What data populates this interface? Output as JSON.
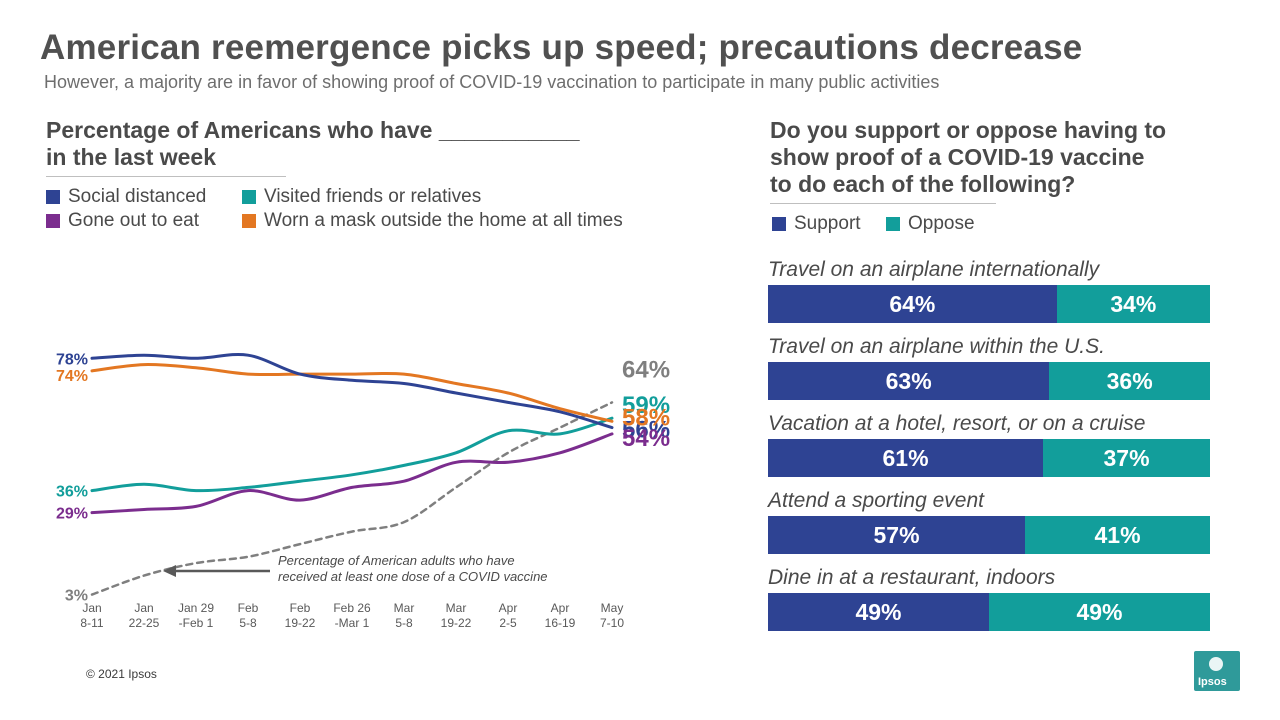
{
  "header": {
    "title": "American reemergence picks up speed; precautions decrease",
    "subtitle": "However, a majority are in favor of showing proof of COVID-19  vaccination to participate in many public  activities"
  },
  "left": {
    "heading_line1": "Percentage of Americans who have ___________",
    "heading_line2": "in the last week"
  },
  "right": {
    "heading_line1": "Do you support or oppose having to",
    "heading_line2": "show proof of a COVID-19 vaccine",
    "heading_line3": "to do each of the following?"
  },
  "colors": {
    "navy": "#2e4393",
    "teal": "#129e9b",
    "purple": "#7b2d8e",
    "orange": "#e37722",
    "gray_dashed": "#7f7f7f"
  },
  "chart_data": [
    {
      "type": "line",
      "title": "Percentage of Americans who have ___________ in the last week",
      "categories": [
        [
          "Jan",
          "8-11"
        ],
        [
          "Jan",
          "22-25"
        ],
        [
          "Jan 29",
          "-Feb 1"
        ],
        [
          "Feb",
          "5-8"
        ],
        [
          "Feb",
          "19-22"
        ],
        [
          "Feb 26",
          "-Mar 1"
        ],
        [
          "Mar",
          "5-8"
        ],
        [
          "Mar",
          "19-22"
        ],
        [
          "Apr",
          "2-5"
        ],
        [
          "Apr",
          "16-19"
        ],
        [
          "May",
          "7-10"
        ]
      ],
      "ylim": [
        0,
        100
      ],
      "series": [
        {
          "name": "Social distanced",
          "color": "#2e4393",
          "values": [
            78,
            79,
            78,
            79,
            73,
            71,
            70,
            67,
            64,
            61,
            56
          ],
          "start_label": "78%",
          "end_label": "56%"
        },
        {
          "name": "Visited friends or relatives",
          "color": "#129e9b",
          "values": [
            36,
            38,
            36,
            37,
            39,
            41,
            44,
            48,
            55,
            54,
            59
          ],
          "start_label": "36%",
          "end_label": "59%"
        },
        {
          "name": "Gone out to eat",
          "color": "#7b2d8e",
          "values": [
            29,
            30,
            31,
            36,
            33,
            37,
            39,
            45,
            45,
            48,
            54
          ],
          "start_label": "29%",
          "end_label": "54%"
        },
        {
          "name": "Worn a mask outside the home at all times",
          "color": "#e37722",
          "values": [
            74,
            76,
            75,
            73,
            73,
            73,
            73,
            70,
            67,
            62,
            58
          ],
          "start_label": "74%",
          "end_label": "58%"
        },
        {
          "name": "Percentage of American adults who have received at least one dose of a COVID vaccine",
          "color": "#7f7f7f",
          "dashed": true,
          "values": [
            3,
            9,
            13,
            15,
            19,
            23,
            26,
            37,
            48,
            56,
            64
          ],
          "start_label": "3%",
          "end_label": "64%"
        }
      ],
      "legend": [
        "Social distanced",
        "Visited friends or relatives",
        "Gone out to eat",
        "Worn a mask outside the home at all times"
      ],
      "annotation_line1": "Percentage of American adults who  have",
      "annotation_line2": "received at least one dose of a COVID vaccine"
    },
    {
      "type": "bar",
      "orientation": "horizontal",
      "stacked": true,
      "legend": [
        "Support",
        "Oppose"
      ],
      "categories": [
        "Travel on an airplane internationally",
        "Travel on an airplane within the U.S.",
        "Vacation at a hotel, resort, or on a cruise",
        "Attend a sporting event",
        "Dine in at a restaurant, indoors"
      ],
      "series": [
        {
          "name": "Support",
          "color": "#2e4393",
          "values": [
            64,
            63,
            61,
            57,
            49
          ],
          "labels": [
            "64%",
            "63%",
            "61%",
            "57%",
            "49%"
          ]
        },
        {
          "name": "Oppose",
          "color": "#129e9b",
          "values": [
            34,
            36,
            37,
            41,
            49
          ],
          "labels": [
            "34%",
            "36%",
            "37%",
            "41%",
            "49%"
          ]
        }
      ]
    }
  ],
  "footer": {
    "copyright": "© 2021 Ipsos",
    "logo_text": "Ipsos"
  }
}
